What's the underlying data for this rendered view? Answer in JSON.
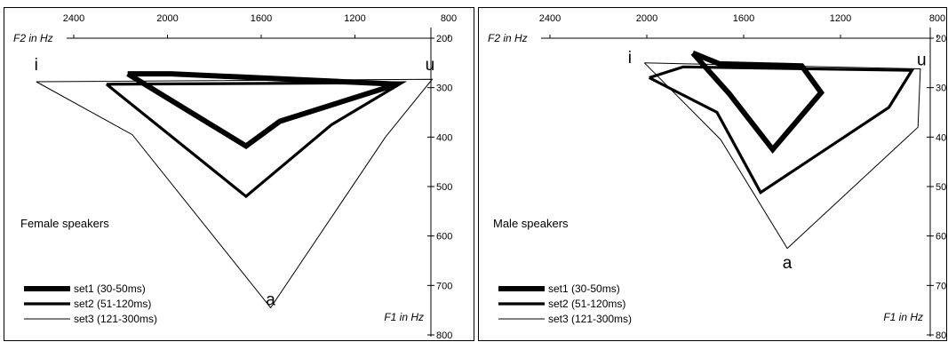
{
  "chart_data": [
    {
      "type": "line",
      "panel_label": "Female speakers",
      "xlabel": "F2 in Hz",
      "ylabel": "F1 in Hz",
      "x_axis": "reversed, top",
      "y_axis": "increasing downward, right",
      "xlim": [
        2650,
        820
      ],
      "ylim": [
        200,
        800
      ],
      "x_ticks": [
        "2400",
        "2000",
        "1600",
        "1200",
        "800"
      ],
      "y_ticks": [
        "200",
        "300",
        "400",
        "500",
        "600",
        "700",
        "800"
      ],
      "grid": false,
      "legend_position": "bottom-left",
      "vowel_labels": [
        {
          "text": "i",
          "f2": 2560,
          "f1": 265
        },
        {
          "text": "u",
          "f2": 880,
          "f1": 265
        },
        {
          "text": "a",
          "f2": 1560,
          "f1": 740
        }
      ],
      "series": [
        {
          "name": "set1 (30-50ms)",
          "stroke_width": 6,
          "points": [
            {
              "f2": 2170,
              "f1": 272
            },
            {
              "f2": 1985,
              "f1": 272
            },
            {
              "f2": 1020,
              "f1": 293
            },
            {
              "f2": 1520,
              "f1": 368
            },
            {
              "f2": 1665,
              "f1": 418
            },
            {
              "f2": 2170,
              "f1": 272
            }
          ]
        },
        {
          "name": "set2 (51-120ms)",
          "stroke_width": 3.2,
          "points": [
            {
              "f2": 2260,
              "f1": 293
            },
            {
              "f2": 1000,
              "f1": 290
            },
            {
              "f2": 1300,
              "f1": 375
            },
            {
              "f2": 1665,
              "f1": 520
            },
            {
              "f2": 2260,
              "f1": 293
            }
          ]
        },
        {
          "name": "set3 (121-300ms)",
          "stroke_width": 1,
          "points": [
            {
              "f2": 2560,
              "f1": 288
            },
            {
              "f2": 870,
              "f1": 283
            },
            {
              "f2": 1070,
              "f1": 400
            },
            {
              "f2": 1560,
              "f1": 745
            },
            {
              "f2": 2150,
              "f1": 395
            },
            {
              "f2": 2560,
              "f1": 288
            }
          ]
        }
      ]
    },
    {
      "type": "line",
      "panel_label": "Male speakers",
      "xlabel": "F2 in Hz",
      "ylabel": "F1 in Hz",
      "x_axis": "reversed, top",
      "y_axis": "increasing downward, right",
      "xlim": [
        2650,
        820
      ],
      "ylim": [
        200,
        800
      ],
      "x_ticks": [
        "2400",
        "2000",
        "1600",
        "1200",
        "800"
      ],
      "y_ticks": [
        "200",
        "300",
        "400",
        "500",
        "600",
        "700",
        "800"
      ],
      "grid": false,
      "legend_position": "bottom-left",
      "vowel_labels": [
        {
          "text": "i",
          "f2": 2070,
          "f1": 250
        },
        {
          "text": "u",
          "f2": 865,
          "f1": 255
        },
        {
          "text": "a",
          "f2": 1420,
          "f1": 665
        }
      ],
      "series": [
        {
          "name": "set1 (30-50ms)",
          "stroke_width": 6,
          "points": [
            {
              "f2": 1810,
              "f1": 230
            },
            {
              "f2": 1660,
              "f1": 312
            },
            {
              "f2": 1480,
              "f1": 425
            },
            {
              "f2": 1280,
              "f1": 310
            },
            {
              "f2": 1360,
              "f1": 256
            },
            {
              "f2": 1700,
              "f1": 252
            },
            {
              "f2": 1810,
              "f1": 230
            }
          ]
        },
        {
          "name": "set2 (51-120ms)",
          "stroke_width": 3.2,
          "points": [
            {
              "f2": 1990,
              "f1": 280
            },
            {
              "f2": 1710,
              "f1": 350
            },
            {
              "f2": 1530,
              "f1": 512
            },
            {
              "f2": 1000,
              "f1": 340
            },
            {
              "f2": 905,
              "f1": 265
            },
            {
              "f2": 1850,
              "f1": 258
            },
            {
              "f2": 1990,
              "f1": 280
            }
          ]
        },
        {
          "name": "set3 (121-300ms)",
          "stroke_width": 1,
          "points": [
            {
              "f2": 2010,
              "f1": 250
            },
            {
              "f2": 1695,
              "f1": 405
            },
            {
              "f2": 1420,
              "f1": 625
            },
            {
              "f2": 880,
              "f1": 380
            },
            {
              "f2": 870,
              "f1": 262
            },
            {
              "f2": 2010,
              "f1": 250
            }
          ]
        }
      ]
    }
  ]
}
